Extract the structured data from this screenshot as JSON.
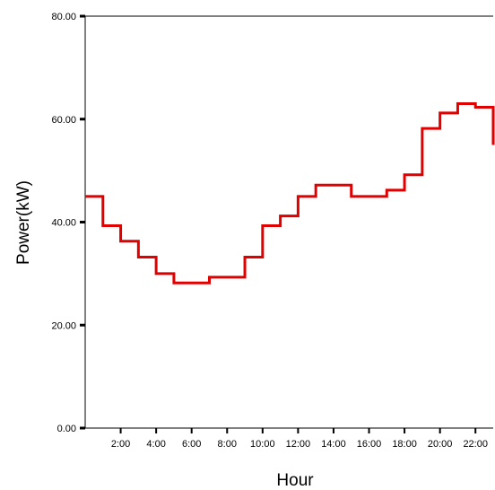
{
  "chart_data": {
    "type": "line",
    "step": "post",
    "title": "",
    "xlabel": "Hour",
    "ylabel": "Power(kW)",
    "xlim": [
      0,
      23
    ],
    "ylim": [
      0,
      80
    ],
    "x_ticks": [
      {
        "value": 2,
        "label": "2:00"
      },
      {
        "value": 4,
        "label": "4:00"
      },
      {
        "value": 6,
        "label": "6:00"
      },
      {
        "value": 8,
        "label": "8:00"
      },
      {
        "value": 10,
        "label": "10:00"
      },
      {
        "value": 12,
        "label": "12:00"
      },
      {
        "value": 14,
        "label": "14:00"
      },
      {
        "value": 16,
        "label": "16:00"
      },
      {
        "value": 18,
        "label": "18:00"
      },
      {
        "value": 20,
        "label": "20:00"
      },
      {
        "value": 22,
        "label": "22:00"
      }
    ],
    "y_ticks": [
      {
        "value": 0,
        "label": "0.00"
      },
      {
        "value": 20,
        "label": "20.00"
      },
      {
        "value": 40,
        "label": "40.00"
      },
      {
        "value": 60,
        "label": "60.00"
      },
      {
        "value": 80,
        "label": "80.00"
      }
    ],
    "grid": false,
    "line_color": "#e00000",
    "series": [
      {
        "x": [
          0,
          1,
          2,
          3,
          4,
          5,
          6,
          7,
          8,
          9,
          10,
          11,
          12,
          13,
          14,
          15,
          16,
          17,
          18,
          19,
          20,
          21,
          22,
          23
        ],
        "y": [
          45,
          39.3,
          36.3,
          33.2,
          30,
          28.2,
          28.2,
          29.3,
          29.3,
          33.2,
          39.3,
          41.2,
          45,
          47.2,
          47.2,
          45,
          45,
          46.2,
          49.2,
          58.2,
          61.2,
          63,
          62.3,
          55
        ]
      }
    ]
  }
}
